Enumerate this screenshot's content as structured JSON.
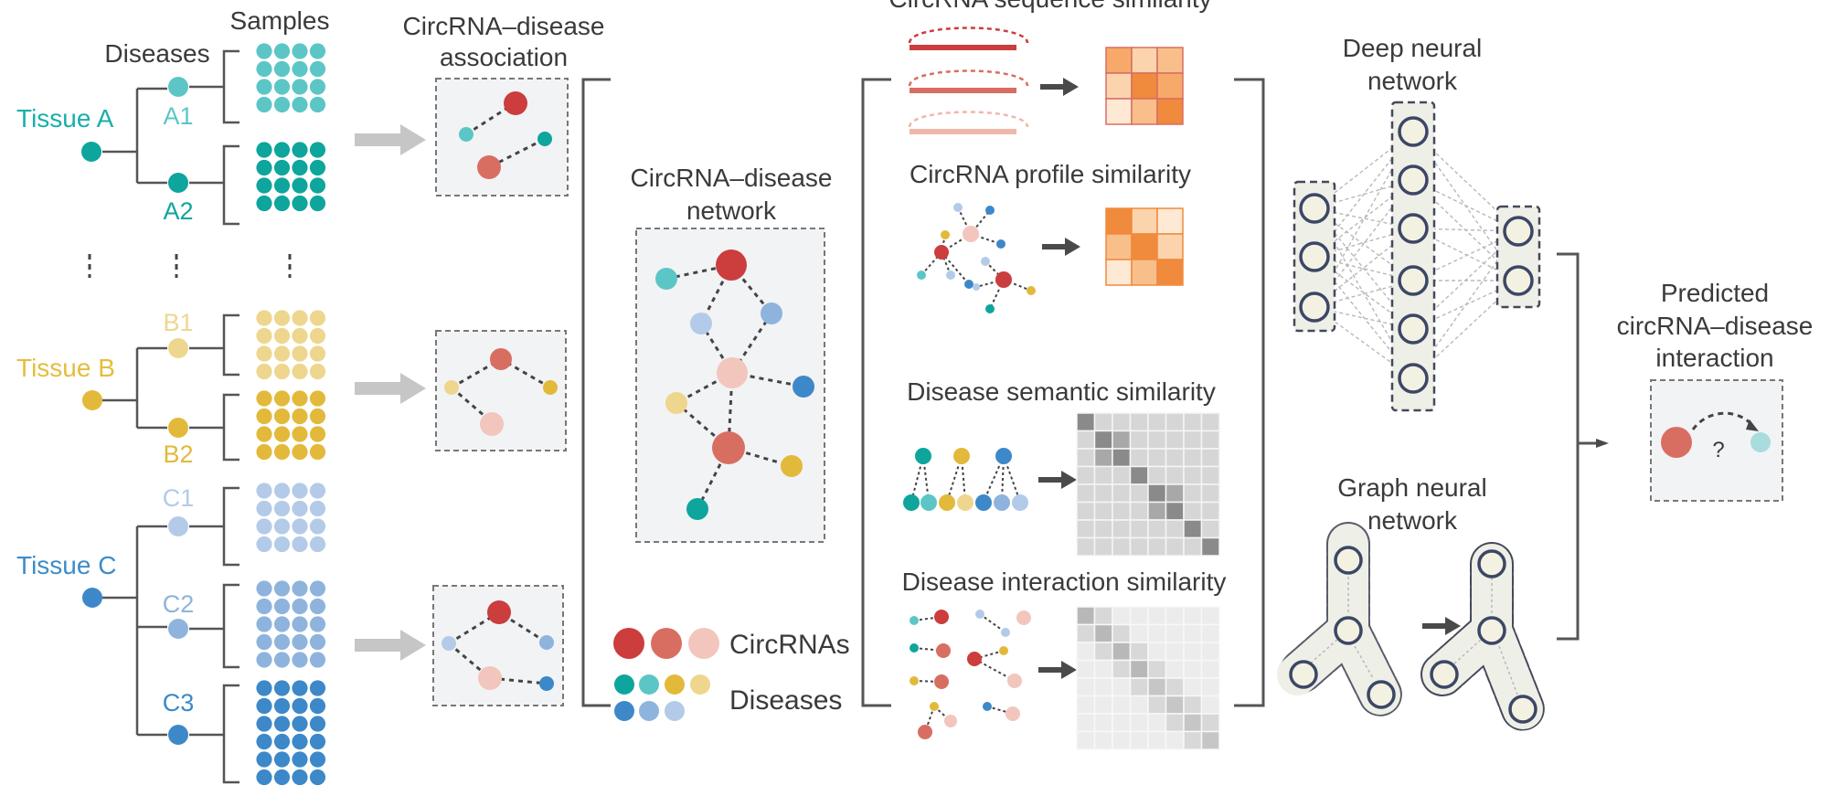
{
  "labels": {
    "samples": "Samples",
    "diseases": "Diseases",
    "assoc_line1": "CircRNA–disease",
    "assoc_line2": "association",
    "network_line1": "CircRNA–disease",
    "network_line2": "network",
    "seq_sim": "CircRNA sequence similarity",
    "profile_sim": "CircRNA profile similarity",
    "semantic_sim": "Disease semantic similarity",
    "interaction_sim": "Disease interaction similarity",
    "dnn_line1": "Deep neural",
    "dnn_line2": "network",
    "gnn_line1": "Graph neural",
    "gnn_line2": "network",
    "pred_line1": "Predicted",
    "pred_line2": "circRNA–disease",
    "pred_line3": "interaction",
    "question": "?",
    "legend_circrnas": "CircRNAs",
    "legend_diseases": "Diseases"
  },
  "tissues": [
    {
      "name": "Tissue A",
      "color": "#1aaeaa",
      "diseases": [
        {
          "name": "A1",
          "color": "#5cc6c6"
        },
        {
          "name": "A2",
          "color": "#0ea59d"
        }
      ]
    },
    {
      "name": "Tissue B",
      "color": "#e5bd3c",
      "diseases": [
        {
          "name": "B1",
          "color": "#eed68e"
        },
        {
          "name": "B2",
          "color": "#e2b93a"
        }
      ]
    },
    {
      "name": "Tissue C",
      "color": "#3e8cc8",
      "diseases": [
        {
          "name": "C1",
          "color": "#b3cbe8"
        },
        {
          "name": "C2",
          "color": "#8eb4dd"
        },
        {
          "name": "C3",
          "color": "#3d88c9"
        }
      ]
    }
  ],
  "colors": {
    "circ_dark": "#cc3d3d",
    "circ_mid": "#d86e62",
    "circ_light": "#f2c6bd",
    "orange_matrix": "#f08a3c",
    "gray_matrix": "#8a8a8a"
  }
}
